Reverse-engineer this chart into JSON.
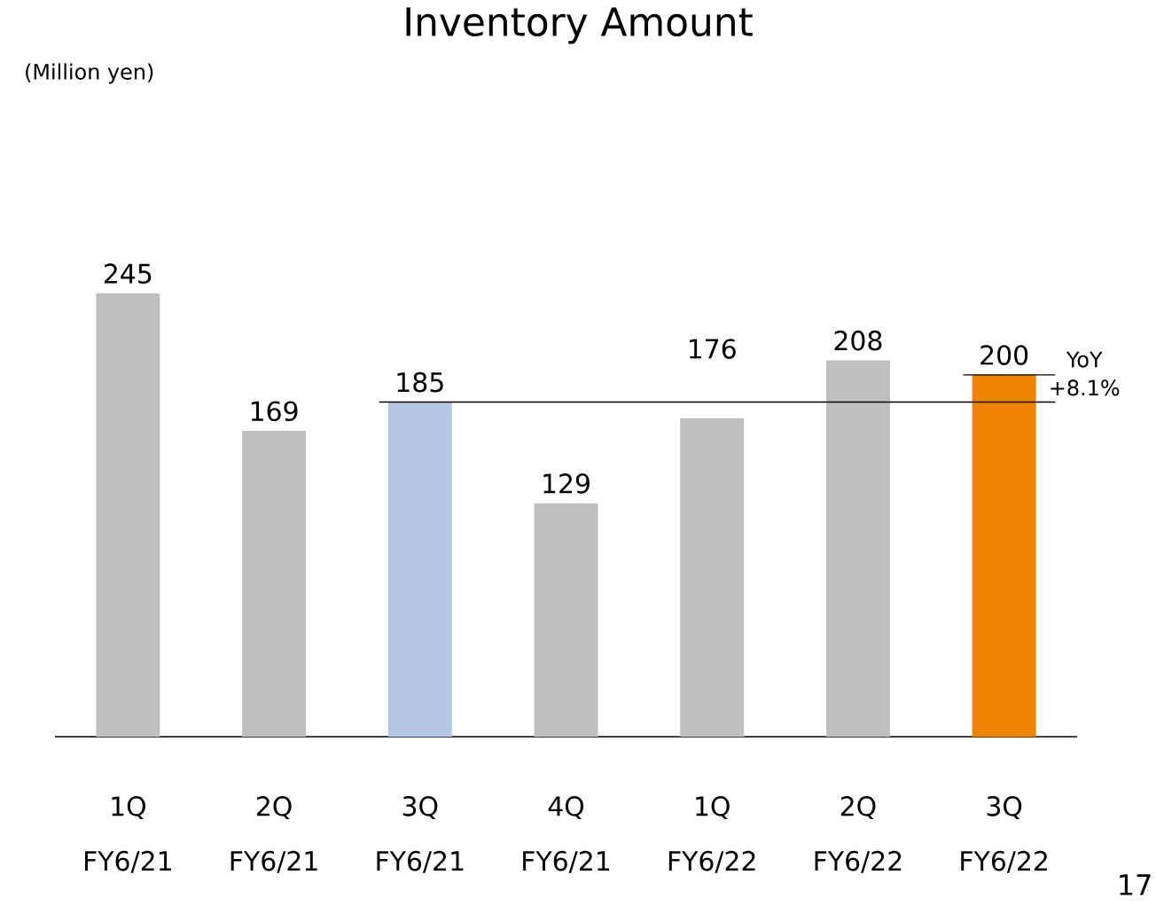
{
  "chart_data": {
    "type": "bar",
    "title": "Inventory Amount",
    "categories": [
      "1Q FY6/21",
      "2Q FY6/21",
      "3Q FY6/21",
      "4Q FY6/21",
      "1Q FY6/22",
      "2Q FY6/22",
      "3Q FY6/22"
    ],
    "values": [
      245,
      169,
      185,
      129,
      176,
      208,
      200
    ],
    "colors": [
      "#bfbfbf",
      "#bfbfbf",
      "#b4c7e7",
      "#bfbfbf",
      "#bfbfbf",
      "#bfbfbf",
      "#f08300"
    ],
    "data_labels": true,
    "ref_lines": [
      {
        "axis": "y",
        "value": 185,
        "label": "YoY +8.1%"
      },
      {
        "axis": "y",
        "value": 200
      }
    ],
    "annotations": [
      "(Million yen)",
      "17"
    ]
  }
}
